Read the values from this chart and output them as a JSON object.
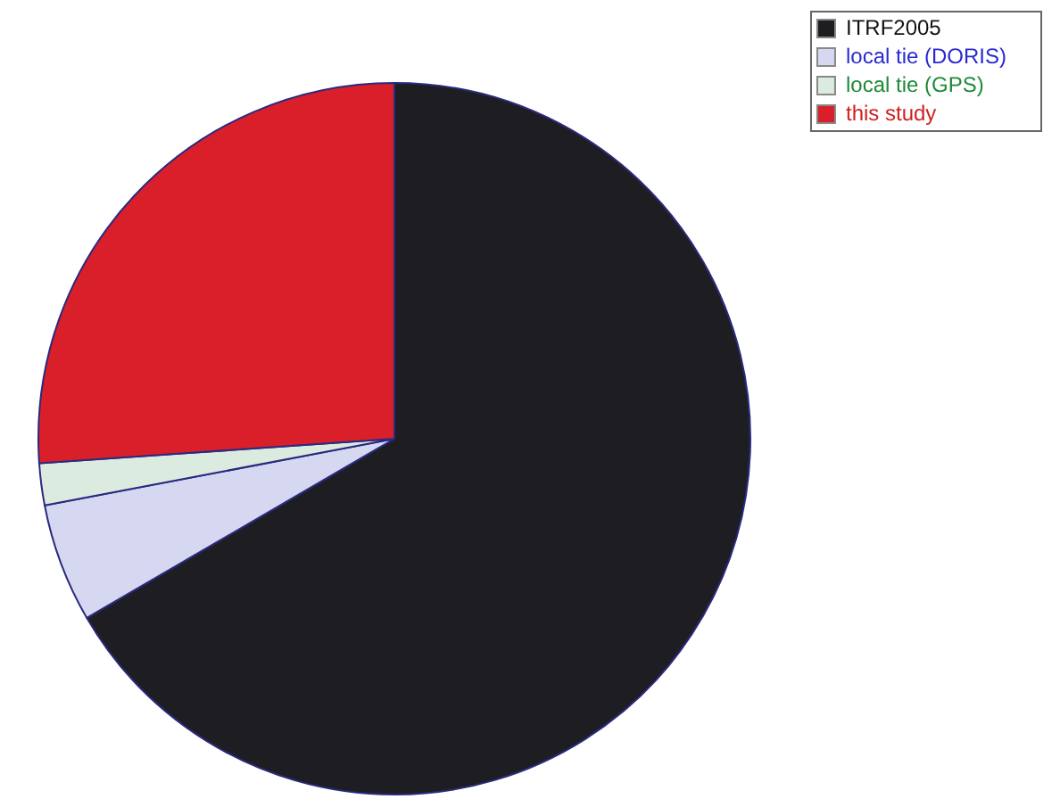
{
  "chart_data": {
    "type": "pie",
    "legend": "top right",
    "categories": [
      "ITRF2005",
      "local tie (DORIS)",
      "local tie (GPS)",
      "this study"
    ],
    "values": [
      66.6,
      5.4,
      1.9,
      26.1
    ],
    "colors": [
      "#1e1e22",
      "#d6d8f2",
      "#dcebe0",
      "#d9202a"
    ]
  }
}
